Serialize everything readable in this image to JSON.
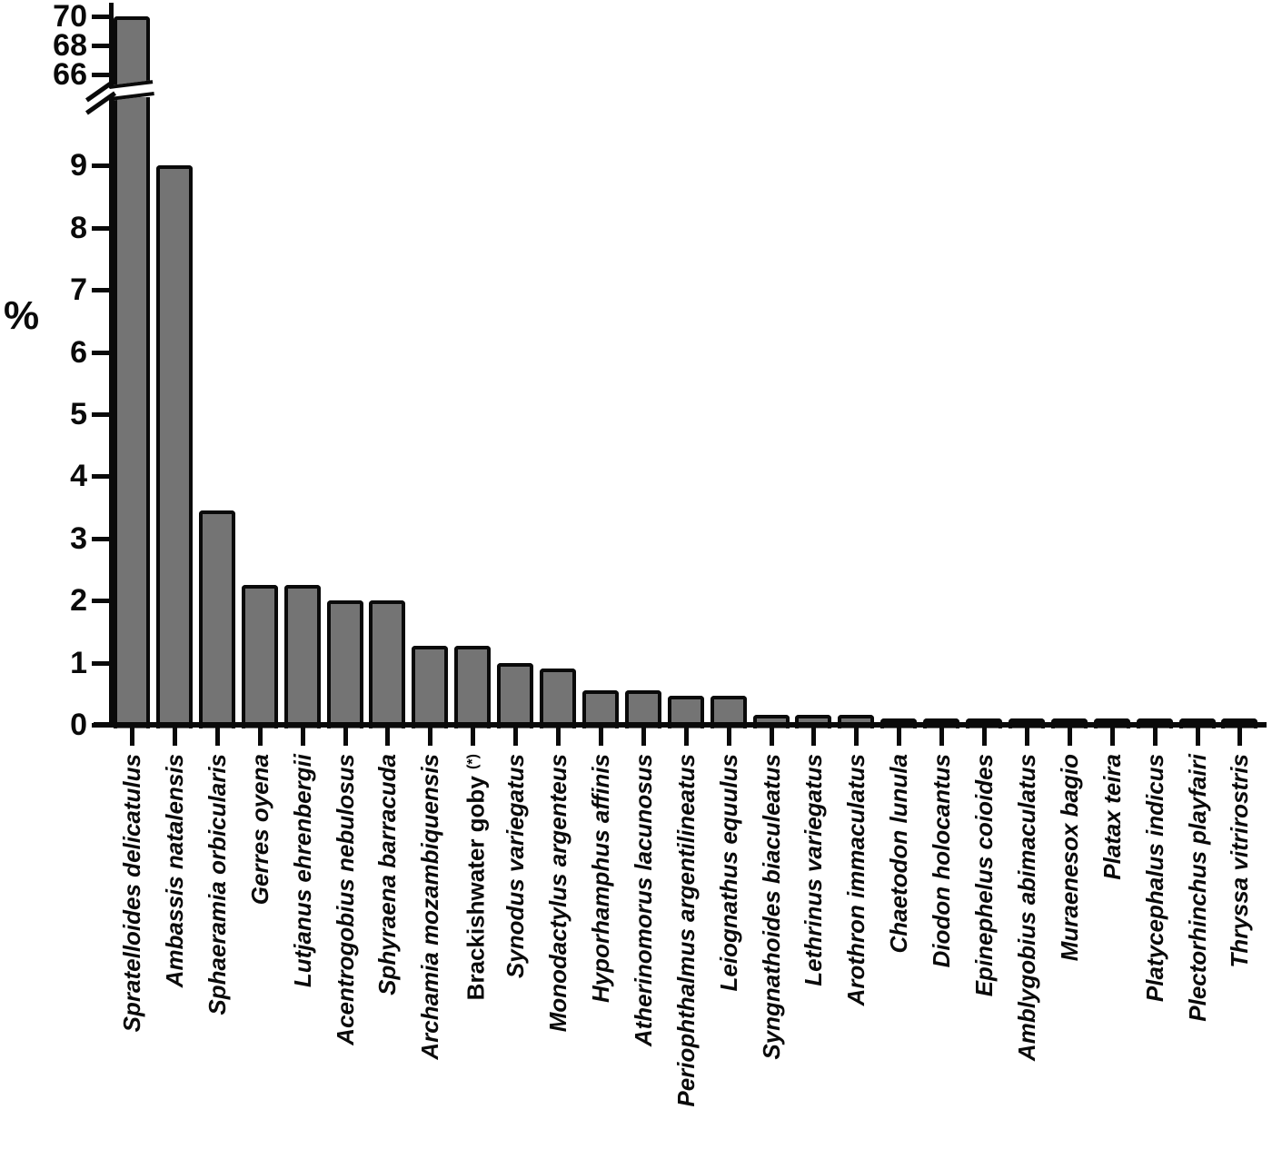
{
  "figure": {
    "ylabel": "%",
    "colors": {
      "background": "#ffffff",
      "bar_fill": "#747474",
      "bar_border": "#0a0a0a",
      "axis": "#0a0a0a",
      "text": "#0a0a0a"
    }
  },
  "chart_data": {
    "type": "bar",
    "title": "",
    "xlabel": "",
    "ylabel": "%",
    "grid": false,
    "legend": false,
    "broken_y_axis": {
      "enabled": true,
      "lower_ticks": [
        0,
        1,
        2,
        3,
        4,
        5,
        6,
        7,
        8,
        9
      ],
      "upper_ticks": [
        66,
        68,
        70
      ],
      "lower_range": [
        0,
        10
      ],
      "upper_range": [
        65,
        70.5
      ]
    },
    "categories": [
      "Spratelloides delicatulus",
      "Ambassis natalensis",
      "Sphaeramia orbicularis",
      "Gerres oyena",
      "Lutjanus ehrenbergii",
      "Acentrogobius nebulosus",
      "Sphyraena barracuda",
      "Archamia mozambiquensis",
      "Brackishwater goby (*)",
      "Synodus variegatus",
      "Monodactylus argenteus",
      "Hyporhamphus affinis",
      "Atherinomorus lacunosus",
      "Periophthalmus argentilineatus",
      "Leiognathus equulus",
      "Syngnathoides biaculeatus",
      "Lethrinus variegatus",
      "Arothron immaculatus",
      "Chaetodon lunula",
      "Diodon holocantus",
      "Epinephelus coioides",
      "Amblygobius abimaculatus",
      "Muraenesox bagio",
      "Platax teira",
      "Platycephalus indicus",
      "Plectorhinchus playfairi",
      "Thryssa vitrirostris"
    ],
    "values": [
      70,
      9,
      3.45,
      2.25,
      2.25,
      2.0,
      2.0,
      1.27,
      1.27,
      1.0,
      0.9,
      0.55,
      0.55,
      0.47,
      0.47,
      0.16,
      0.16,
      0.16,
      0.1,
      0.1,
      0.1,
      0.1,
      0.1,
      0.1,
      0.1,
      0.1,
      0.1
    ],
    "label_style": {
      "italic_labels": true,
      "non_italic_indices": [
        8
      ],
      "superscript_suffix_index": 8,
      "superscript_text": "(*)"
    }
  }
}
